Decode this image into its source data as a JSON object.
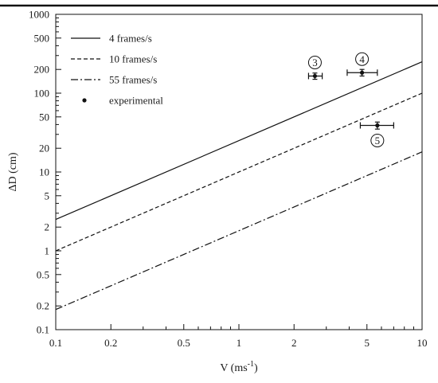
{
  "chart_data": {
    "type": "line",
    "xlabel": "V (ms",
    "xlabel_sup": "-1",
    "xlabel_end": ")",
    "ylabel": "ΔD (cm)",
    "x_scale": "log",
    "y_scale": "log",
    "xlim": [
      0.1,
      10
    ],
    "ylim": [
      0.1,
      1000
    ],
    "x_ticks": [
      0.1,
      0.2,
      0.5,
      1,
      2,
      5,
      10
    ],
    "x_tick_labels": [
      "0.1",
      "0.2",
      "0.5",
      "1",
      "2",
      "5",
      "10"
    ],
    "y_ticks": [
      0.1,
      0.2,
      0.5,
      1,
      2,
      5,
      10,
      20,
      50,
      100,
      200,
      500,
      1000
    ],
    "y_tick_labels": [
      "0.1",
      "0.2",
      "0.5",
      "1",
      "2",
      "5",
      "10",
      "20",
      "50",
      "100",
      "200",
      "500",
      "1000"
    ],
    "grid": false,
    "legend_placement": "top-left",
    "series": [
      {
        "name": "4 frames/s",
        "style": "solid",
        "x": [
          0.1,
          10
        ],
        "y": [
          2.5,
          250
        ]
      },
      {
        "name": "10 frames/s",
        "style": "dashed",
        "x": [
          0.1,
          10
        ],
        "y": [
          1.0,
          100
        ]
      },
      {
        "name": "55 frames/s",
        "style": "dashdot",
        "x": [
          0.1,
          10
        ],
        "y": [
          0.18,
          18
        ]
      }
    ],
    "experimental": {
      "name": "experimental",
      "points": [
        {
          "label": "3",
          "x": 2.6,
          "y": 165,
          "x_err": [
            2.4,
            2.85
          ],
          "y_err": [
            150,
            180
          ]
        },
        {
          "label": "4",
          "x": 4.7,
          "y": 182,
          "x_err": [
            3.9,
            5.7
          ],
          "y_err": [
            165,
            200
          ]
        },
        {
          "label": "5",
          "x": 5.7,
          "y": 39,
          "x_err": [
            4.6,
            7.0
          ],
          "y_err": [
            35,
            43
          ]
        }
      ]
    }
  }
}
